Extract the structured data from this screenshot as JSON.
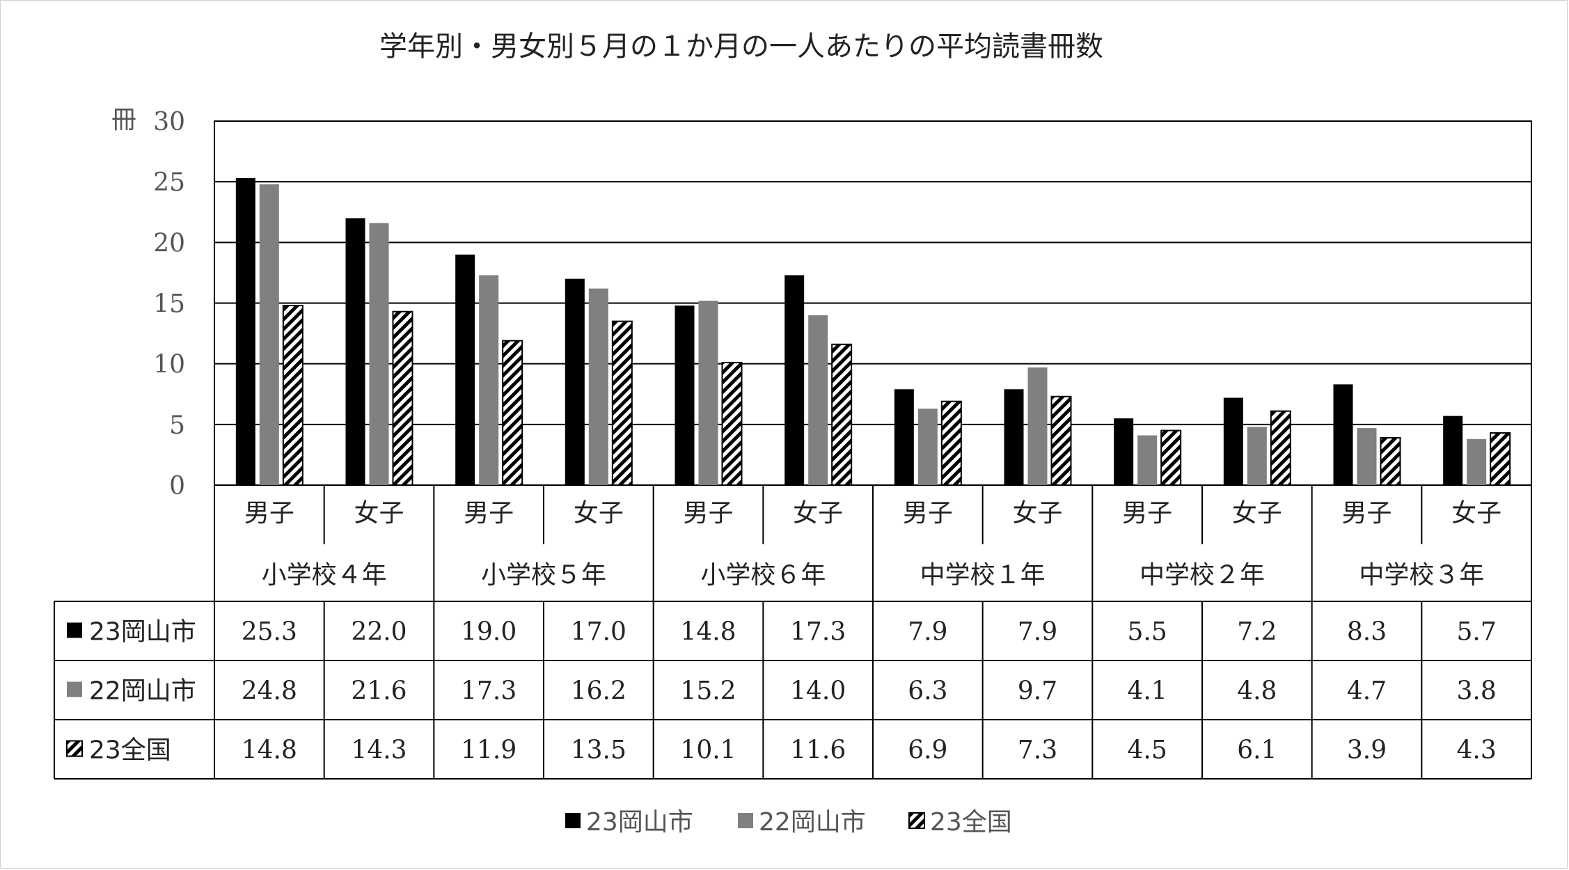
{
  "chart_data": {
    "type": "bar",
    "title": "学年別・男女別５月の１か月の一人あたりの平均読書冊数",
    "ylabel": "冊",
    "ylim": [
      0,
      30
    ],
    "yticks": [
      "0",
      "5",
      "10",
      "15",
      "20",
      "25",
      "30"
    ],
    "grid": true,
    "legend_position": "bottom",
    "categories": [
      "男子",
      "女子",
      "男子",
      "女子",
      "男子",
      "女子",
      "男子",
      "女子",
      "男子",
      "女子",
      "男子",
      "女子"
    ],
    "groups": [
      "小学校４年",
      "小学校５年",
      "小学校６年",
      "中学校１年",
      "中学校２年",
      "中学校３年"
    ],
    "series": [
      {
        "name": "23岡山市",
        "color": "#000000",
        "fill": "solid",
        "values": [
          25.3,
          22.0,
          19.0,
          17.0,
          14.8,
          17.3,
          7.9,
          7.9,
          5.5,
          7.2,
          8.3,
          5.7
        ],
        "labels": [
          "25.3",
          "22.0",
          "19.0",
          "17.0",
          "14.8",
          "17.3",
          "7.9",
          "7.9",
          "5.5",
          "7.2",
          "8.3",
          "5.7"
        ]
      },
      {
        "name": "22岡山市",
        "color": "#808080",
        "fill": "solid",
        "values": [
          24.8,
          21.6,
          17.3,
          16.2,
          15.2,
          14.0,
          6.3,
          9.7,
          4.1,
          4.8,
          4.7,
          3.8
        ],
        "labels": [
          "24.8",
          "21.6",
          "17.3",
          "16.2",
          "15.2",
          "14.0",
          "6.3",
          "9.7",
          "4.1",
          "4.8",
          "4.7",
          "3.8"
        ]
      },
      {
        "name": "23全国",
        "color": "#000000",
        "fill": "diagonal-hatch",
        "values": [
          14.8,
          14.3,
          11.9,
          13.5,
          10.1,
          11.6,
          6.9,
          7.3,
          4.5,
          6.1,
          3.9,
          4.3
        ],
        "labels": [
          "14.8",
          "14.3",
          "11.9",
          "13.5",
          "10.1",
          "11.6",
          "6.9",
          "7.3",
          "4.5",
          "6.1",
          "3.9",
          "4.3"
        ]
      }
    ]
  }
}
